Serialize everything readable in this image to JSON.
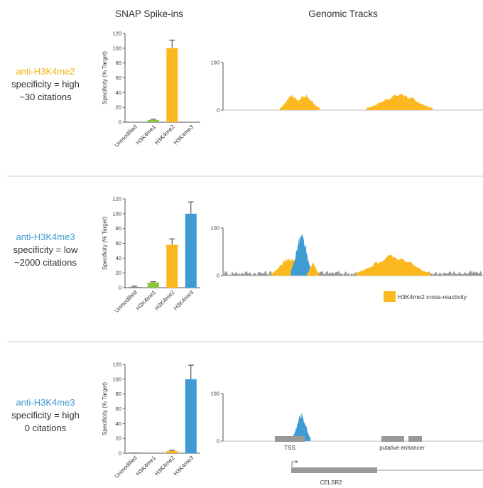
{
  "headers": {
    "spikeins": "SNAP Spike-ins",
    "tracks": "Genomic Tracks"
  },
  "colors": {
    "unmodified": "#888888",
    "h3k4me1": "#8cc63f",
    "h3k4me2": "#fbb91f",
    "h3k4me3": "#3f9bd3",
    "background": "#999999",
    "divider": "#cccccc",
    "axis": "#555555"
  },
  "rows": [
    {
      "antibody": "anti-H3K4me2",
      "antibody_color": "#f5b212",
      "specificity": "specificity = high",
      "citations": "~30 citations",
      "chart_data": {
        "type": "bar",
        "categories": [
          "Unmodified",
          "H3K4me1",
          "H3K4me2",
          "H3K4me3"
        ],
        "values": [
          0,
          3,
          100,
          0
        ],
        "errors": [
          0,
          1,
          11,
          0
        ],
        "ylabel": "Specificity (% Target)",
        "ylim": [
          0,
          120
        ],
        "yticks": [
          "0",
          "20",
          "40",
          "60",
          "80",
          "100",
          "120"
        ]
      },
      "track": {
        "type": "area",
        "yticks": [
          "0",
          "100"
        ],
        "peaks": [
          {
            "series": "H3K4me2",
            "center": 0.265,
            "width": 0.03,
            "height": 0.3
          },
          {
            "series": "H3K4me2",
            "center": 0.315,
            "width": 0.035,
            "height": 0.3
          },
          {
            "series": "H3K4me2",
            "center": 0.68,
            "width": 0.08,
            "height": 0.32
          }
        ],
        "background": []
      }
    },
    {
      "antibody": "anti-H3K4me3",
      "antibody_color": "#3f9bd3",
      "specificity": "specificity = low",
      "citations": "~2000 citations",
      "chart_data": {
        "type": "bar",
        "categories": [
          "Unmodified",
          "H3K4me1",
          "H3K4me2",
          "H3K4me3"
        ],
        "values": [
          1,
          7,
          58,
          100
        ],
        "errors": [
          1,
          1,
          8,
          16
        ],
        "ylabel": "Specificity (% Target)",
        "ylim": [
          0,
          120
        ],
        "yticks": [
          "0",
          "20",
          "40",
          "60",
          "80",
          "100",
          "120"
        ]
      },
      "track": {
        "type": "area",
        "yticks": [
          "0",
          "100"
        ],
        "peaks": [
          {
            "series": "H3K4me2",
            "center": 0.255,
            "width": 0.045,
            "height": 0.35
          },
          {
            "series": "H3K4me3",
            "center": 0.3,
            "width": 0.025,
            "height": 0.8
          },
          {
            "series": "H3K4me2",
            "center": 0.345,
            "width": 0.015,
            "height": 0.25
          },
          {
            "series": "H3K4me2",
            "center": 0.655,
            "width": 0.09,
            "height": 0.4
          }
        ],
        "background": [
          0.1,
          0.08
        ],
        "legend": "H3K4me2 cross-reactivity"
      }
    },
    {
      "antibody": "anti-H3K4me3",
      "antibody_color": "#3f9bd3",
      "specificity": "specificity = high",
      "citations": "0 citations",
      "chart_data": {
        "type": "bar",
        "categories": [
          "Unmodified",
          "H3K4me1",
          "H3K4me2",
          "H3K4me3"
        ],
        "values": [
          1,
          0,
          3,
          100
        ],
        "errors": [
          0,
          0,
          1,
          19
        ],
        "ylabel": "Specificity (% Target)",
        "ylim": [
          0,
          120
        ],
        "yticks": [
          "0",
          "20",
          "40",
          "60",
          "80",
          "100",
          "120"
        ]
      },
      "track": {
        "type": "area",
        "yticks": [
          "0",
          "100"
        ],
        "peaks": [
          {
            "series": "H3K4me3",
            "center": 0.3,
            "width": 0.022,
            "height": 0.52
          }
        ],
        "background": [],
        "annotations": [
          "TSS",
          "putative enhancer"
        ],
        "gene": "CELSR2"
      }
    }
  ]
}
